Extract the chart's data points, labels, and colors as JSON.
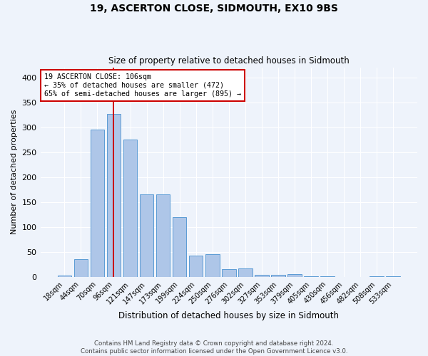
{
  "title": "19, ASCERTON CLOSE, SIDMOUTH, EX10 9BS",
  "subtitle": "Size of property relative to detached houses in Sidmouth",
  "xlabel": "Distribution of detached houses by size in Sidmouth",
  "ylabel": "Number of detached properties",
  "bar_labels": [
    "18sqm",
    "44sqm",
    "70sqm",
    "96sqm",
    "121sqm",
    "147sqm",
    "173sqm",
    "199sqm",
    "224sqm",
    "250sqm",
    "276sqm",
    "302sqm",
    "327sqm",
    "353sqm",
    "379sqm",
    "405sqm",
    "430sqm",
    "456sqm",
    "482sqm",
    "508sqm",
    "533sqm"
  ],
  "bar_heights": [
    2,
    35,
    295,
    327,
    275,
    165,
    165,
    120,
    43,
    45,
    15,
    17,
    4,
    4,
    5,
    1,
    1,
    0,
    0,
    1,
    1
  ],
  "bar_color": "#aec6e8",
  "bar_edge_color": "#5b9bd5",
  "bg_color": "#eef3fb",
  "grid_color": "#ffffff",
  "annotation_text": "19 ASCERTON CLOSE: 106sqm\n← 35% of detached houses are smaller (472)\n65% of semi-detached houses are larger (895) →",
  "annotation_box_color": "#ffffff",
  "annotation_box_edge": "#cc0000",
  "vline_color": "#cc0000",
  "footer_line1": "Contains HM Land Registry data © Crown copyright and database right 2024.",
  "footer_line2": "Contains public sector information licensed under the Open Government Licence v3.0.",
  "ylim": [
    0,
    420
  ],
  "figsize": [
    6.0,
    5.0
  ],
  "dpi": 100
}
